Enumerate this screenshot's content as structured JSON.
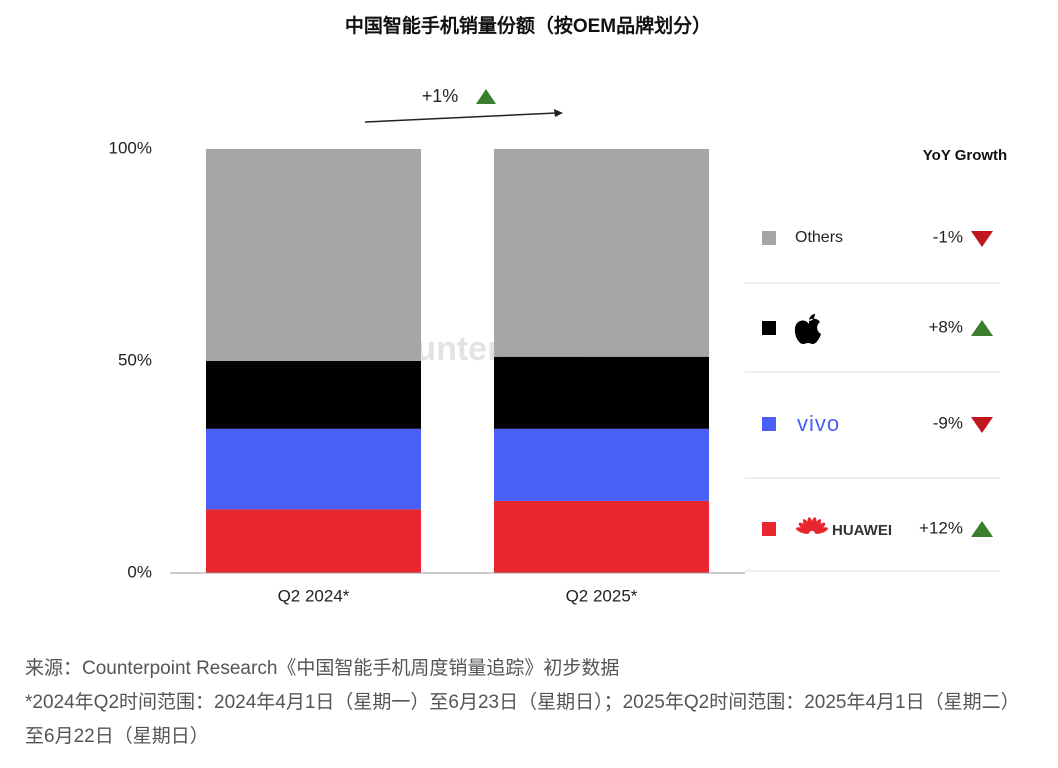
{
  "chart_data": {
    "type": "stacked_bar",
    "title": "中国智能手机销量份额（按OEM品牌划分）",
    "annotation": "+1%",
    "watermark": "Counterpoint",
    "growth_title": "YoY Growth",
    "categories": [
      "Q2 2024*",
      "Q2 2025*"
    ],
    "series": [
      {
        "name": "HUAWEI",
        "color": "#e8262e",
        "values": [
          15,
          17
        ],
        "growth": 12,
        "growth_label": "+12%"
      },
      {
        "name": "vivo",
        "color": "#4a5ff7",
        "values": [
          19,
          17
        ],
        "growth": -9,
        "growth_label": "-9%"
      },
      {
        "color": "#000000",
        "values": [
          16,
          17
        ],
        "growth": 8,
        "growth_label": "+8%"
      },
      {
        "name": "Others",
        "color": "#a6a6a6",
        "values": [
          50,
          49
        ],
        "growth": -1,
        "growth_label": "-1%"
      }
    ],
    "ylim": [
      0,
      100
    ],
    "yticks": [
      {
        "value": 0,
        "label": "0%"
      },
      {
        "value": 50,
        "label": "50%"
      },
      {
        "value": 100,
        "label": "100%"
      }
    ],
    "notes": [
      "来源：Counterpoint Research《中国智能手机周度销量追踪》初步数据",
      "*2024年Q2时间范围：2024年4月1日（星期一）至6月23日（星期日）；2025年Q2时间范围：2025年4月1日（星期二）至6月22日（星期日）"
    ]
  }
}
